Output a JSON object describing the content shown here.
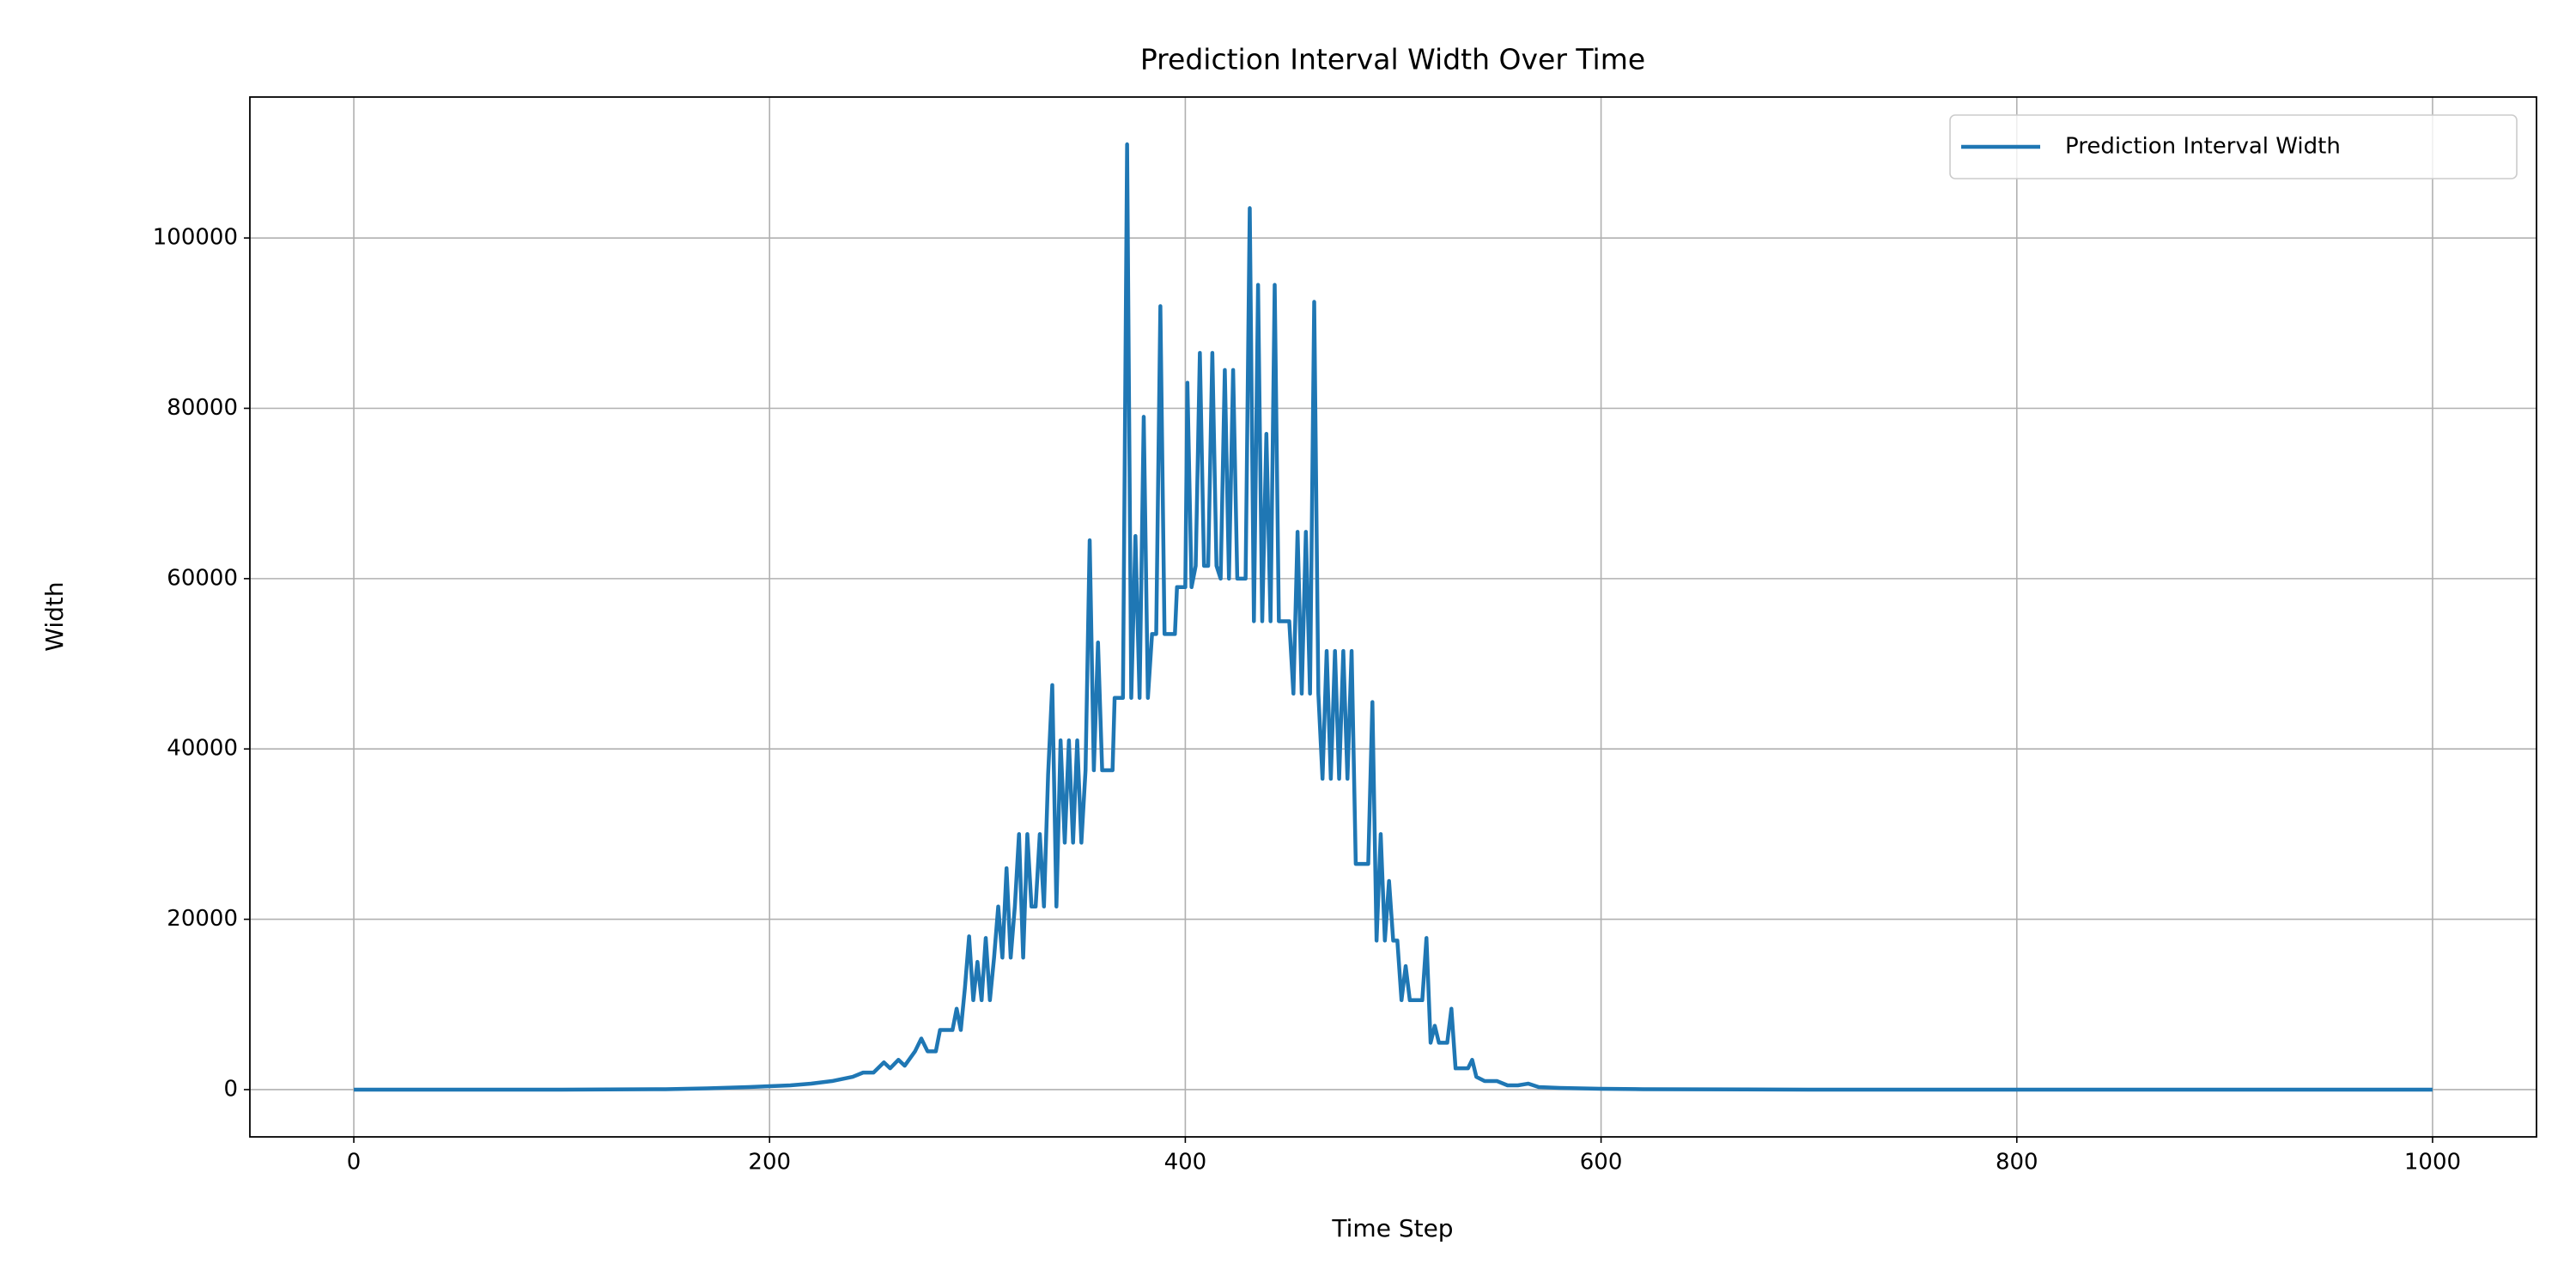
{
  "chart_data": {
    "type": "line",
    "title": "Prediction Interval Width Over Time",
    "x_label": "Time Step",
    "y_label": "Width",
    "x": [
      0,
      100,
      150,
      170,
      190,
      200,
      210,
      220,
      230,
      240,
      245,
      250,
      255,
      258,
      262,
      265,
      270,
      273,
      276,
      280,
      282,
      288,
      290,
      292,
      294,
      296,
      298,
      300,
      302,
      304,
      306,
      308,
      310,
      312,
      314,
      316,
      318,
      320,
      322,
      324,
      326,
      328,
      330,
      332,
      334,
      336,
      338,
      340,
      342,
      344,
      346,
      348,
      350,
      352,
      354,
      356,
      358,
      360,
      365,
      366,
      370,
      372,
      374,
      376,
      378,
      380,
      382,
      384,
      386,
      388,
      390,
      395,
      396,
      400,
      401,
      403,
      405,
      407,
      409,
      411,
      413,
      415,
      417,
      419,
      421,
      423,
      425,
      429,
      431,
      433,
      435,
      437,
      439,
      441,
      443,
      445,
      450,
      452,
      454,
      456,
      458,
      460,
      462,
      464,
      466,
      468,
      470,
      472,
      474,
      476,
      478,
      480,
      482,
      488,
      490,
      492,
      494,
      496,
      498,
      500,
      502,
      504,
      506,
      508,
      514,
      516,
      518,
      520,
      522,
      526,
      528,
      530,
      536,
      538,
      540,
      544,
      550,
      555,
      560,
      565,
      570,
      580,
      600,
      620,
      700,
      1000
    ],
    "series": [
      {
        "name": "Prediction Interval Width",
        "color": "#1f77b4",
        "values": [
          0,
          0,
          50,
          150,
          300,
          400,
          500,
          700,
          1000,
          1500,
          2000,
          2000,
          3200,
          2500,
          3500,
          2800,
          4500,
          6000,
          4500,
          4500,
          7000,
          7000,
          9500,
          7000,
          12000,
          18000,
          10500,
          15000,
          10500,
          17800,
          10500,
          15500,
          21500,
          15500,
          26000,
          15500,
          21500,
          30000,
          15500,
          30000,
          21500,
          21500,
          30000,
          21500,
          37000,
          47500,
          21500,
          41000,
          29000,
          41000,
          29000,
          41000,
          29000,
          37500,
          64500,
          37500,
          52500,
          37500,
          37500,
          46000,
          46000,
          111000,
          46000,
          65000,
          46000,
          79000,
          46000,
          53500,
          53500,
          92000,
          53500,
          53500,
          59000,
          59000,
          83000,
          59000,
          61500,
          86500,
          61500,
          61500,
          86500,
          61500,
          60000,
          84500,
          60000,
          84500,
          60000,
          60000,
          103500,
          55000,
          94500,
          55000,
          77000,
          55000,
          94500,
          55000,
          55000,
          46500,
          65500,
          46500,
          65500,
          46500,
          92500,
          46500,
          36500,
          51500,
          36500,
          51500,
          36500,
          51500,
          36500,
          51500,
          26500,
          26500,
          45500,
          17500,
          30000,
          17500,
          24500,
          17500,
          17500,
          10500,
          14500,
          10500,
          10500,
          17800,
          5500,
          7500,
          5500,
          5500,
          9500,
          2500,
          2500,
          3500,
          1500,
          1000,
          1000,
          500,
          500,
          700,
          300,
          200,
          100,
          50,
          0,
          0
        ]
      }
    ],
    "xlim": [
      -50,
      1050
    ],
    "xticks": [
      0,
      200,
      400,
      600,
      800,
      1000
    ],
    "ylim": [
      -5550,
      116550
    ],
    "yticks": [
      0,
      20000,
      40000,
      60000,
      80000,
      100000
    ],
    "grid": true,
    "legend": "upper right"
  }
}
